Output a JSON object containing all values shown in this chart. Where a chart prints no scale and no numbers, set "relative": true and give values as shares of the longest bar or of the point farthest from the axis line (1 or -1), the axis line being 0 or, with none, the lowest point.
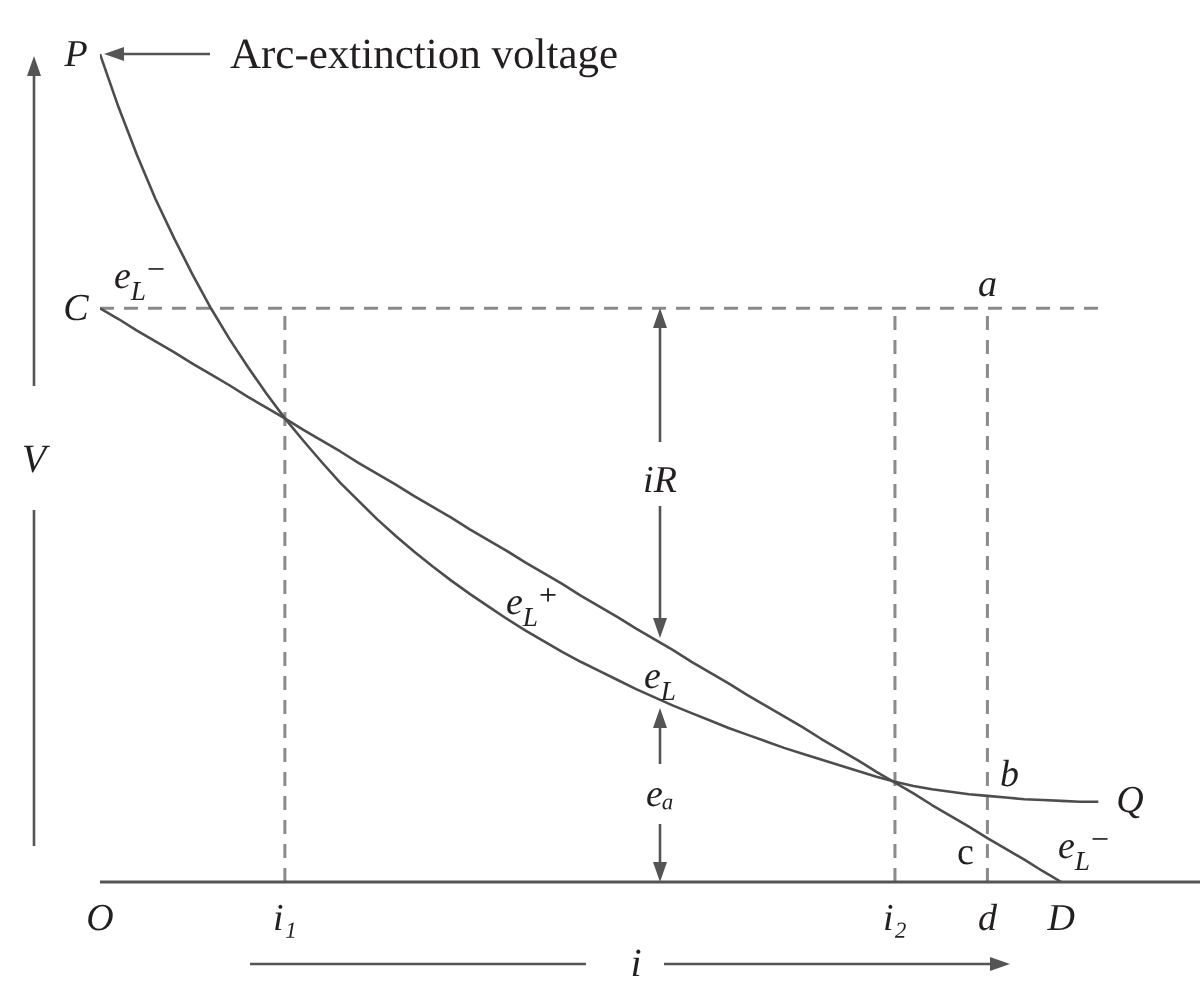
{
  "chart_data": {
    "type": "line",
    "relative": true,
    "xlabel": "i",
    "ylabel": "V",
    "categories": [
      "O",
      null,
      null,
      null,
      null,
      null,
      null,
      null,
      null,
      null,
      "i₁",
      null,
      null,
      null,
      null,
      null,
      null,
      null,
      null,
      null,
      null,
      null,
      null,
      null,
      null,
      null,
      null,
      null,
      null,
      null,
      null,
      null,
      null,
      null,
      null,
      null,
      null,
      null,
      null,
      null,
      null,
      null,
      null,
      "i₂",
      null,
      null,
      null,
      null,
      "d",
      null,
      null,
      null,
      "D",
      null,
      null
    ],
    "series": [
      {
        "color": "#4d4d4d",
        "values": [
          1.0,
          0.936,
          0.878,
          0.825,
          0.778,
          0.734,
          0.693,
          0.656,
          0.622,
          0.59,
          0.56,
          0.533,
          0.507,
          0.482,
          0.46,
          0.438,
          0.418,
          0.399,
          0.381,
          0.364,
          0.348,
          0.333,
          0.318,
          0.304,
          0.291,
          0.278,
          0.266,
          0.255,
          0.244,
          0.233,
          0.223,
          0.213,
          0.204,
          0.195,
          0.186,
          0.178,
          0.17,
          0.162,
          0.155,
          0.148,
          0.141,
          0.134,
          0.127,
          0.121,
          0.116,
          0.112,
          0.109,
          0.106,
          0.104,
          0.102,
          0.1,
          0.099,
          0.098,
          0.097,
          0.097
        ]
      },
      {
        "color": "#4d4d4d",
        "values": [
          0.693,
          0.68,
          0.666,
          0.653,
          0.64,
          0.626,
          0.613,
          0.6,
          0.586,
          0.573,
          0.56,
          0.546,
          0.533,
          0.52,
          0.506,
          0.493,
          0.48,
          0.466,
          0.453,
          0.44,
          0.426,
          0.413,
          0.4,
          0.386,
          0.373,
          0.36,
          0.346,
          0.333,
          0.32,
          0.306,
          0.293,
          0.28,
          0.266,
          0.253,
          0.24,
          0.226,
          0.213,
          0.2,
          0.187,
          0.173,
          0.16,
          0.147,
          0.133,
          0.12,
          0.107,
          0.093,
          0.08,
          0.067,
          0.053,
          0.04,
          0.027,
          0.013,
          0.0,
          null,
          null
        ]
      }
    ],
    "ref_lines": [
      {
        "axis": "y",
        "value": 0.693,
        "color": "#8a8a8a",
        "line_style": "dashed"
      },
      {
        "axis": "x",
        "value": "i₁",
        "color": "#8a8a8a",
        "line_style": "dashed"
      },
      {
        "axis": "x",
        "value": "i₂",
        "color": "#8a8a8a",
        "line_style": "dashed"
      },
      {
        "axis": "x",
        "value": "d",
        "color": "#8a8a8a",
        "line_style": "dashed"
      }
    ],
    "annotations": [
      "Arc-extinction voltage",
      {
        "text": "P",
        "x": "O",
        "y": 1
      },
      {
        "text": "C",
        "x": "O",
        "y": 0.693
      },
      {
        "text": "a",
        "x": "d",
        "y": 0.693
      },
      {
        "text": "b",
        "x": "d",
        "y": 0.104
      },
      {
        "text": "c",
        "x": "d",
        "y": 0.053
      },
      "Q",
      "e$_{L}$⁻",
      "e$_{L}$⁺",
      "iR",
      "e$_{L}$",
      "eₐ",
      "e$_{L}$⁻"
    ]
  }
}
